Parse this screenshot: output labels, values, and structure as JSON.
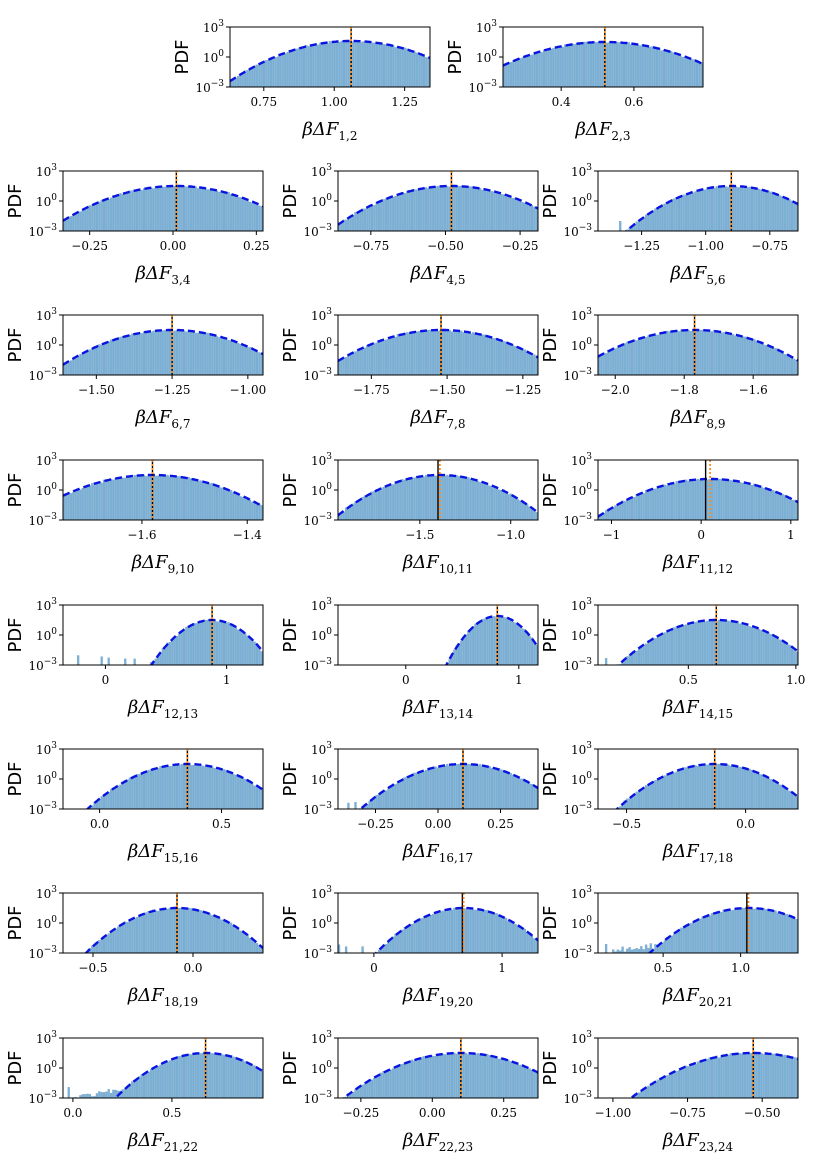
{
  "colors": {
    "histogram": "#7bafd4",
    "histogram_edge": "#6a9fc8",
    "gaussian_fit": "#0a14e0",
    "true_value_line": "#000000",
    "mean_line": "#ff8c1a"
  },
  "chart_data": [
    {
      "type": "histogram",
      "ylabel": "PDF",
      "xlabel": "βΔF",
      "xsub": "1,2",
      "ylog": true,
      "yticks_exp": [
        "3",
        "0",
        "−3"
      ],
      "xticks": [
        {
          "v": 0.75,
          "t": "0.75"
        },
        {
          "v": 1.0,
          "t": "1.00"
        },
        {
          "v": 1.25,
          "t": "1.25"
        }
      ],
      "xlim": [
        0.63,
        1.34
      ],
      "mean": 1.06,
      "sigma": 0.1,
      "peak_exp": 1.6,
      "true_value": 1.06
    },
    {
      "type": "histogram",
      "ylabel": "PDF",
      "xlabel": "βΔF",
      "xsub": "2,3",
      "ylog": true,
      "yticks_exp": [
        "3",
        "0",
        "−3"
      ],
      "xticks": [
        {
          "v": 0.4,
          "t": "0.4"
        },
        {
          "v": 0.6,
          "t": "0.6"
        }
      ],
      "xlim": [
        0.24,
        0.79
      ],
      "mean": 0.52,
      "sigma": 0.085,
      "peak_exp": 1.5,
      "true_value": 0.52
    },
    {
      "type": "histogram",
      "ylabel": "PDF",
      "xlabel": "βΔF",
      "xsub": "3,4",
      "ylog": true,
      "yticks_exp": [
        "3",
        "0",
        "−3"
      ],
      "xticks": [
        {
          "v": -0.25,
          "t": "−0.25"
        },
        {
          "v": 0.0,
          "t": "0.00"
        },
        {
          "v": 0.25,
          "t": "0.25"
        }
      ],
      "xlim": [
        -0.33,
        0.27
      ],
      "mean": 0.01,
      "sigma": 0.085,
      "peak_exp": 1.5,
      "true_value": 0.01
    },
    {
      "type": "histogram",
      "ylabel": "PDF",
      "xlabel": "βΔF",
      "xsub": "4,5",
      "ylog": true,
      "yticks_exp": [
        "3",
        "0",
        "−3"
      ],
      "xticks": [
        {
          "v": -0.75,
          "t": "−0.75"
        },
        {
          "v": -0.5,
          "t": "−0.50"
        },
        {
          "v": -0.25,
          "t": "−0.25"
        }
      ],
      "xlim": [
        -0.86,
        -0.19
      ],
      "mean": -0.48,
      "sigma": 0.09,
      "peak_exp": 1.5,
      "true_value": -0.48
    },
    {
      "type": "histogram",
      "ylabel": "PDF",
      "xlabel": "βΔF",
      "xsub": "5,6",
      "ylog": true,
      "yticks_exp": [
        "3",
        "0",
        "−3"
      ],
      "xticks": [
        {
          "v": -1.25,
          "t": "−1.25"
        },
        {
          "v": -1.0,
          "t": "−1.00"
        },
        {
          "v": -0.75,
          "t": "−0.75"
        }
      ],
      "xlim": [
        -1.42,
        -0.64
      ],
      "mean": -0.9,
      "sigma": 0.09,
      "peak_exp": 1.5,
      "true_value": -0.9
    },
    {
      "type": "histogram",
      "ylabel": "PDF",
      "xlabel": "βΔF",
      "xsub": "6,7",
      "ylog": true,
      "yticks_exp": [
        "3",
        "0",
        "−3"
      ],
      "xticks": [
        {
          "v": -1.5,
          "t": "−1.50"
        },
        {
          "v": -1.25,
          "t": "−1.25"
        },
        {
          "v": -1.0,
          "t": "−1.00"
        }
      ],
      "xlim": [
        -1.61,
        -0.95
      ],
      "mean": -1.25,
      "sigma": 0.09,
      "peak_exp": 1.5,
      "true_value": -1.25
    },
    {
      "type": "histogram",
      "ylabel": "PDF",
      "xlabel": "βΔF",
      "xsub": "7,8",
      "ylog": true,
      "yticks_exp": [
        "3",
        "0",
        "−3"
      ],
      "xticks": [
        {
          "v": -1.75,
          "t": "−1.75"
        },
        {
          "v": -1.5,
          "t": "−1.50"
        },
        {
          "v": -1.25,
          "t": "−1.25"
        }
      ],
      "xlim": [
        -1.86,
        -1.2
      ],
      "mean": -1.52,
      "sigma": 0.09,
      "peak_exp": 1.5,
      "true_value": -1.52
    },
    {
      "type": "histogram",
      "ylabel": "PDF",
      "xlabel": "βΔF",
      "xsub": "8,9",
      "ylog": true,
      "yticks_exp": [
        "3",
        "0",
        "−3"
      ],
      "xticks": [
        {
          "v": -2.0,
          "t": "−2.0"
        },
        {
          "v": -1.8,
          "t": "−1.8"
        },
        {
          "v": -1.6,
          "t": "−1.6"
        }
      ],
      "xlim": [
        -2.05,
        -1.47
      ],
      "mean": -1.77,
      "sigma": 0.08,
      "peak_exp": 1.5,
      "true_value": -1.77
    },
    {
      "type": "histogram",
      "ylabel": "PDF",
      "xlabel": "βΔF",
      "xsub": "9,10",
      "ylog": true,
      "yticks_exp": [
        "3",
        "0",
        "−3"
      ],
      "xticks": [
        {
          "v": -1.6,
          "t": "−1.6"
        },
        {
          "v": -1.4,
          "t": "−1.4"
        }
      ],
      "xlim": [
        -1.75,
        -1.37
      ],
      "mean": -1.58,
      "sigma": 0.055,
      "peak_exp": 1.5,
      "true_value": -1.58
    },
    {
      "type": "histogram",
      "ylabel": "PDF",
      "xlabel": "βΔF",
      "xsub": "10,11",
      "ylog": true,
      "yticks_exp": [
        "3",
        "0",
        "−3"
      ],
      "xticks": [
        {
          "v": -1.5,
          "t": "−1.5"
        },
        {
          "v": -1.0,
          "t": "−1.0"
        }
      ],
      "xlim": [
        -1.95,
        -0.85
      ],
      "mean": -1.39,
      "sigma": 0.13,
      "peak_exp": 1.5,
      "true_value": -1.4
    },
    {
      "type": "histogram",
      "ylabel": "PDF",
      "xlabel": "βΔF",
      "xsub": "11,12",
      "ylog": true,
      "yticks_exp": [
        "3",
        "0",
        "−3"
      ],
      "xticks": [
        {
          "v": -1,
          "t": "−1"
        },
        {
          "v": 0,
          "t": "0"
        },
        {
          "v": 1,
          "t": "1"
        }
      ],
      "xlim": [
        -1.15,
        1.08
      ],
      "mean": 0.1,
      "sigma": 0.3,
      "peak_exp": 1.1,
      "true_value": 0.05
    },
    {
      "type": "histogram",
      "ylabel": "PDF",
      "xlabel": "βΔF",
      "xsub": "12,13",
      "ylog": true,
      "yticks_exp": [
        "3",
        "0",
        "−3"
      ],
      "xticks": [
        {
          "v": 0,
          "t": "0"
        },
        {
          "v": 1,
          "t": "1"
        }
      ],
      "xlim": [
        -0.35,
        1.3
      ],
      "mean": 0.88,
      "sigma": 0.11,
      "peak_exp": 1.5,
      "true_value": 0.88,
      "left_tail": 0.25
    },
    {
      "type": "histogram",
      "ylabel": "PDF",
      "xlabel": "βΔF",
      "xsub": "13,14",
      "ylog": true,
      "yticks_exp": [
        "3",
        "0",
        "−3"
      ],
      "xticks": [
        {
          "v": 0,
          "t": "0"
        },
        {
          "v": 1,
          "t": "1"
        }
      ],
      "xlim": [
        -0.6,
        1.17
      ],
      "mean": 0.81,
      "sigma": 0.095,
      "peak_exp": 1.9,
      "true_value": 0.81
    },
    {
      "type": "histogram",
      "ylabel": "PDF",
      "xlabel": "βΔF",
      "xsub": "14,15",
      "ylog": true,
      "yticks_exp": [
        "3",
        "0",
        "−3"
      ],
      "xticks": [
        {
          "v": 0.5,
          "t": "0.5"
        },
        {
          "v": 1.0,
          "t": "1.0"
        }
      ],
      "xlim": [
        0.08,
        1.01
      ],
      "mean": 0.63,
      "sigma": 0.1,
      "peak_exp": 1.5,
      "true_value": 0.63
    },
    {
      "type": "histogram",
      "ylabel": "PDF",
      "xlabel": "βΔF",
      "xsub": "15,16",
      "ylog": true,
      "yticks_exp": [
        "3",
        "0",
        "−3"
      ],
      "xticks": [
        {
          "v": 0.0,
          "t": "0.0"
        },
        {
          "v": 0.5,
          "t": "0.5"
        }
      ],
      "xlim": [
        -0.15,
        0.67
      ],
      "mean": 0.36,
      "sigma": 0.09,
      "peak_exp": 1.5,
      "true_value": 0.36
    },
    {
      "type": "histogram",
      "ylabel": "PDF",
      "xlabel": "βΔF",
      "xsub": "16,17",
      "ylog": true,
      "yticks_exp": [
        "3",
        "0",
        "−3"
      ],
      "xticks": [
        {
          "v": -0.25,
          "t": "−0.25"
        },
        {
          "v": 0.0,
          "t": "0.00"
        },
        {
          "v": 0.25,
          "t": "0.25"
        }
      ],
      "xlim": [
        -0.4,
        0.4
      ],
      "mean": 0.1,
      "sigma": 0.09,
      "peak_exp": 1.5,
      "true_value": 0.1
    },
    {
      "type": "histogram",
      "ylabel": "PDF",
      "xlabel": "βΔF",
      "xsub": "17,18",
      "ylog": true,
      "yticks_exp": [
        "3",
        "0",
        "−3"
      ],
      "xticks": [
        {
          "v": -0.5,
          "t": "−0.5"
        },
        {
          "v": 0.0,
          "t": "0.0"
        }
      ],
      "xlim": [
        -0.62,
        0.22
      ],
      "mean": -0.13,
      "sigma": 0.09,
      "peak_exp": 1.5,
      "true_value": -0.13
    },
    {
      "type": "histogram",
      "ylabel": "PDF",
      "xlabel": "βΔF",
      "xsub": "18,19",
      "ylog": true,
      "yticks_exp": [
        "3",
        "0",
        "−3"
      ],
      "xticks": [
        {
          "v": -0.5,
          "t": "−0.5"
        },
        {
          "v": 0.0,
          "t": "0.0"
        }
      ],
      "xlim": [
        -0.65,
        0.35
      ],
      "mean": -0.08,
      "sigma": 0.1,
      "peak_exp": 1.5,
      "true_value": -0.08
    },
    {
      "type": "histogram",
      "ylabel": "PDF",
      "xlabel": "βΔF",
      "xsub": "19,20",
      "ylog": true,
      "yticks_exp": [
        "3",
        "0",
        "−3"
      ],
      "xticks": [
        {
          "v": 0,
          "t": "0"
        },
        {
          "v": 1,
          "t": "1"
        }
      ],
      "xlim": [
        -0.28,
        1.28
      ],
      "mean": 0.7,
      "sigma": 0.15,
      "peak_exp": 1.5,
      "true_value": 0.69,
      "left_tail": 0.12
    },
    {
      "type": "histogram",
      "ylabel": "PDF",
      "xlabel": "βΔF",
      "xsub": "20,21",
      "ylog": true,
      "yticks_exp": [
        "3",
        "0",
        "−3"
      ],
      "xticks": [
        {
          "v": 0.5,
          "t": "0.5"
        },
        {
          "v": 1.0,
          "t": "1.0"
        }
      ],
      "xlim": [
        0.08,
        1.37
      ],
      "mean": 1.05,
      "sigma": 0.14,
      "peak_exp": 1.5,
      "true_value": 1.04,
      "left_tail": 0.45
    },
    {
      "type": "histogram",
      "ylabel": "PDF",
      "xlabel": "βΔF",
      "xsub": "21,22",
      "ylog": true,
      "yticks_exp": [
        "3",
        "0",
        "−3"
      ],
      "xticks": [
        {
          "v": 0.0,
          "t": "0.0"
        },
        {
          "v": 0.5,
          "t": "0.5"
        }
      ],
      "xlim": [
        -0.05,
        0.96
      ],
      "mean": 0.67,
      "sigma": 0.1,
      "peak_exp": 1.5,
      "true_value": 0.67,
      "left_tail": 0.33
    },
    {
      "type": "histogram",
      "ylabel": "PDF",
      "xlabel": "βΔF",
      "xsub": "22,23",
      "ylog": true,
      "yticks_exp": [
        "3",
        "0",
        "−3"
      ],
      "xticks": [
        {
          "v": -0.25,
          "t": "−0.25"
        },
        {
          "v": 0.0,
          "t": "0.00"
        },
        {
          "v": 0.25,
          "t": "0.25"
        }
      ],
      "xlim": [
        -0.33,
        0.37
      ],
      "mean": 0.1,
      "sigma": 0.09,
      "peak_exp": 1.5,
      "true_value": 0.1
    },
    {
      "type": "histogram",
      "ylabel": "PDF",
      "xlabel": "βΔF",
      "xsub": "23,24",
      "ylog": true,
      "yticks_exp": [
        "3",
        "0",
        "−3"
      ],
      "xticks": [
        {
          "v": -1.0,
          "t": "−1.00"
        },
        {
          "v": -0.75,
          "t": "−0.75"
        },
        {
          "v": -0.5,
          "t": "−0.50"
        }
      ],
      "xlim": [
        -1.05,
        -0.38
      ],
      "mean": -0.53,
      "sigma": 0.09,
      "peak_exp": 1.5,
      "true_value": -0.53
    }
  ]
}
